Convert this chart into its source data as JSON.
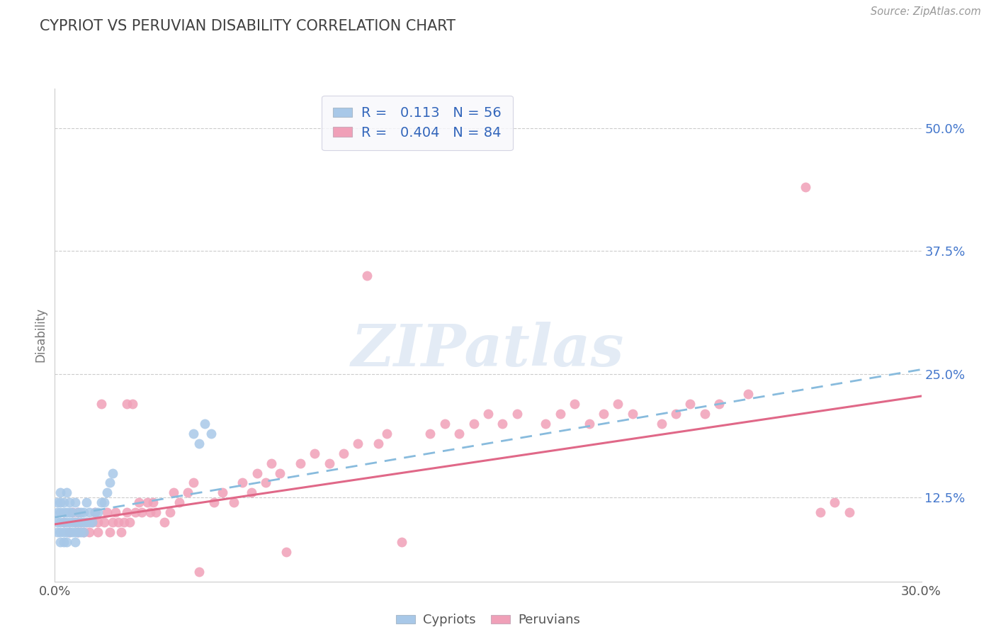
{
  "title": "CYPRIOT VS PERUVIAN DISABILITY CORRELATION CHART",
  "source": "Source: ZipAtlas.com",
  "ylabel": "Disability",
  "xlim": [
    0.0,
    0.3
  ],
  "ylim": [
    0.04,
    0.54
  ],
  "yticks": [
    0.125,
    0.25,
    0.375,
    0.5
  ],
  "ytick_labels": [
    "12.5%",
    "25.0%",
    "37.5%",
    "50.0%"
  ],
  "xticks": [
    0.0,
    0.3
  ],
  "xtick_labels": [
    "0.0%",
    "30.0%"
  ],
  "cypriot_color": "#a8c8e8",
  "peruvian_color": "#f0a0b8",
  "cypriot_R": "0.113",
  "cypriot_N": "56",
  "peruvian_R": "0.404",
  "peruvian_N": "84",
  "cypriot_x": [
    0.001,
    0.001,
    0.001,
    0.001,
    0.002,
    0.002,
    0.002,
    0.002,
    0.002,
    0.002,
    0.003,
    0.003,
    0.003,
    0.003,
    0.003,
    0.004,
    0.004,
    0.004,
    0.004,
    0.004,
    0.005,
    0.005,
    0.005,
    0.005,
    0.006,
    0.006,
    0.006,
    0.007,
    0.007,
    0.007,
    0.007,
    0.008,
    0.008,
    0.008,
    0.009,
    0.009,
    0.009,
    0.01,
    0.01,
    0.01,
    0.011,
    0.011,
    0.012,
    0.012,
    0.013,
    0.014,
    0.015,
    0.016,
    0.017,
    0.018,
    0.019,
    0.02,
    0.048,
    0.05,
    0.052,
    0.054
  ],
  "cypriot_y": [
    0.09,
    0.1,
    0.11,
    0.12,
    0.08,
    0.09,
    0.1,
    0.11,
    0.12,
    0.13,
    0.08,
    0.09,
    0.1,
    0.11,
    0.12,
    0.08,
    0.09,
    0.1,
    0.11,
    0.13,
    0.09,
    0.1,
    0.11,
    0.12,
    0.09,
    0.1,
    0.11,
    0.08,
    0.09,
    0.1,
    0.12,
    0.09,
    0.1,
    0.11,
    0.09,
    0.1,
    0.11,
    0.09,
    0.1,
    0.11,
    0.1,
    0.12,
    0.1,
    0.11,
    0.1,
    0.11,
    0.11,
    0.12,
    0.12,
    0.13,
    0.14,
    0.15,
    0.19,
    0.18,
    0.2,
    0.19
  ],
  "peruvian_x": [
    0.003,
    0.005,
    0.006,
    0.007,
    0.008,
    0.008,
    0.009,
    0.01,
    0.011,
    0.012,
    0.013,
    0.014,
    0.015,
    0.015,
    0.016,
    0.017,
    0.018,
    0.019,
    0.02,
    0.021,
    0.022,
    0.023,
    0.024,
    0.025,
    0.025,
    0.026,
    0.027,
    0.028,
    0.029,
    0.03,
    0.032,
    0.033,
    0.034,
    0.035,
    0.038,
    0.04,
    0.041,
    0.043,
    0.046,
    0.048,
    0.05,
    0.055,
    0.058,
    0.062,
    0.065,
    0.068,
    0.07,
    0.073,
    0.075,
    0.078,
    0.08,
    0.085,
    0.09,
    0.095,
    0.1,
    0.105,
    0.108,
    0.112,
    0.115,
    0.12,
    0.13,
    0.135,
    0.14,
    0.145,
    0.15,
    0.155,
    0.16,
    0.17,
    0.175,
    0.18,
    0.185,
    0.19,
    0.195,
    0.2,
    0.21,
    0.215,
    0.22,
    0.225,
    0.23,
    0.24,
    0.26,
    0.265,
    0.27,
    0.275
  ],
  "peruvian_y": [
    0.1,
    0.09,
    0.11,
    0.1,
    0.09,
    0.11,
    0.1,
    0.09,
    0.1,
    0.09,
    0.1,
    0.11,
    0.09,
    0.1,
    0.22,
    0.1,
    0.11,
    0.09,
    0.1,
    0.11,
    0.1,
    0.09,
    0.1,
    0.22,
    0.11,
    0.1,
    0.22,
    0.11,
    0.12,
    0.11,
    0.12,
    0.11,
    0.12,
    0.11,
    0.1,
    0.11,
    0.13,
    0.12,
    0.13,
    0.14,
    0.05,
    0.12,
    0.13,
    0.12,
    0.14,
    0.13,
    0.15,
    0.14,
    0.16,
    0.15,
    0.07,
    0.16,
    0.17,
    0.16,
    0.17,
    0.18,
    0.35,
    0.18,
    0.19,
    0.08,
    0.19,
    0.2,
    0.19,
    0.2,
    0.21,
    0.2,
    0.21,
    0.2,
    0.21,
    0.22,
    0.2,
    0.21,
    0.22,
    0.21,
    0.2,
    0.21,
    0.22,
    0.21,
    0.22,
    0.23,
    0.44,
    0.11,
    0.12,
    0.11
  ],
  "watermark": "ZIPatlas",
  "title_color": "#404040",
  "axis_label_color": "#777777",
  "tick_color": "#555555",
  "grid_color": "#cccccc",
  "cypriot_trend_color": "#88bbdd",
  "peruvian_trend_color": "#e06888",
  "trend_start_x": 0.0,
  "trend_end_x": 0.3,
  "cypriot_trend_y0": 0.105,
  "cypriot_trend_y1": 0.255,
  "peruvian_trend_y0": 0.098,
  "peruvian_trend_y1": 0.228
}
